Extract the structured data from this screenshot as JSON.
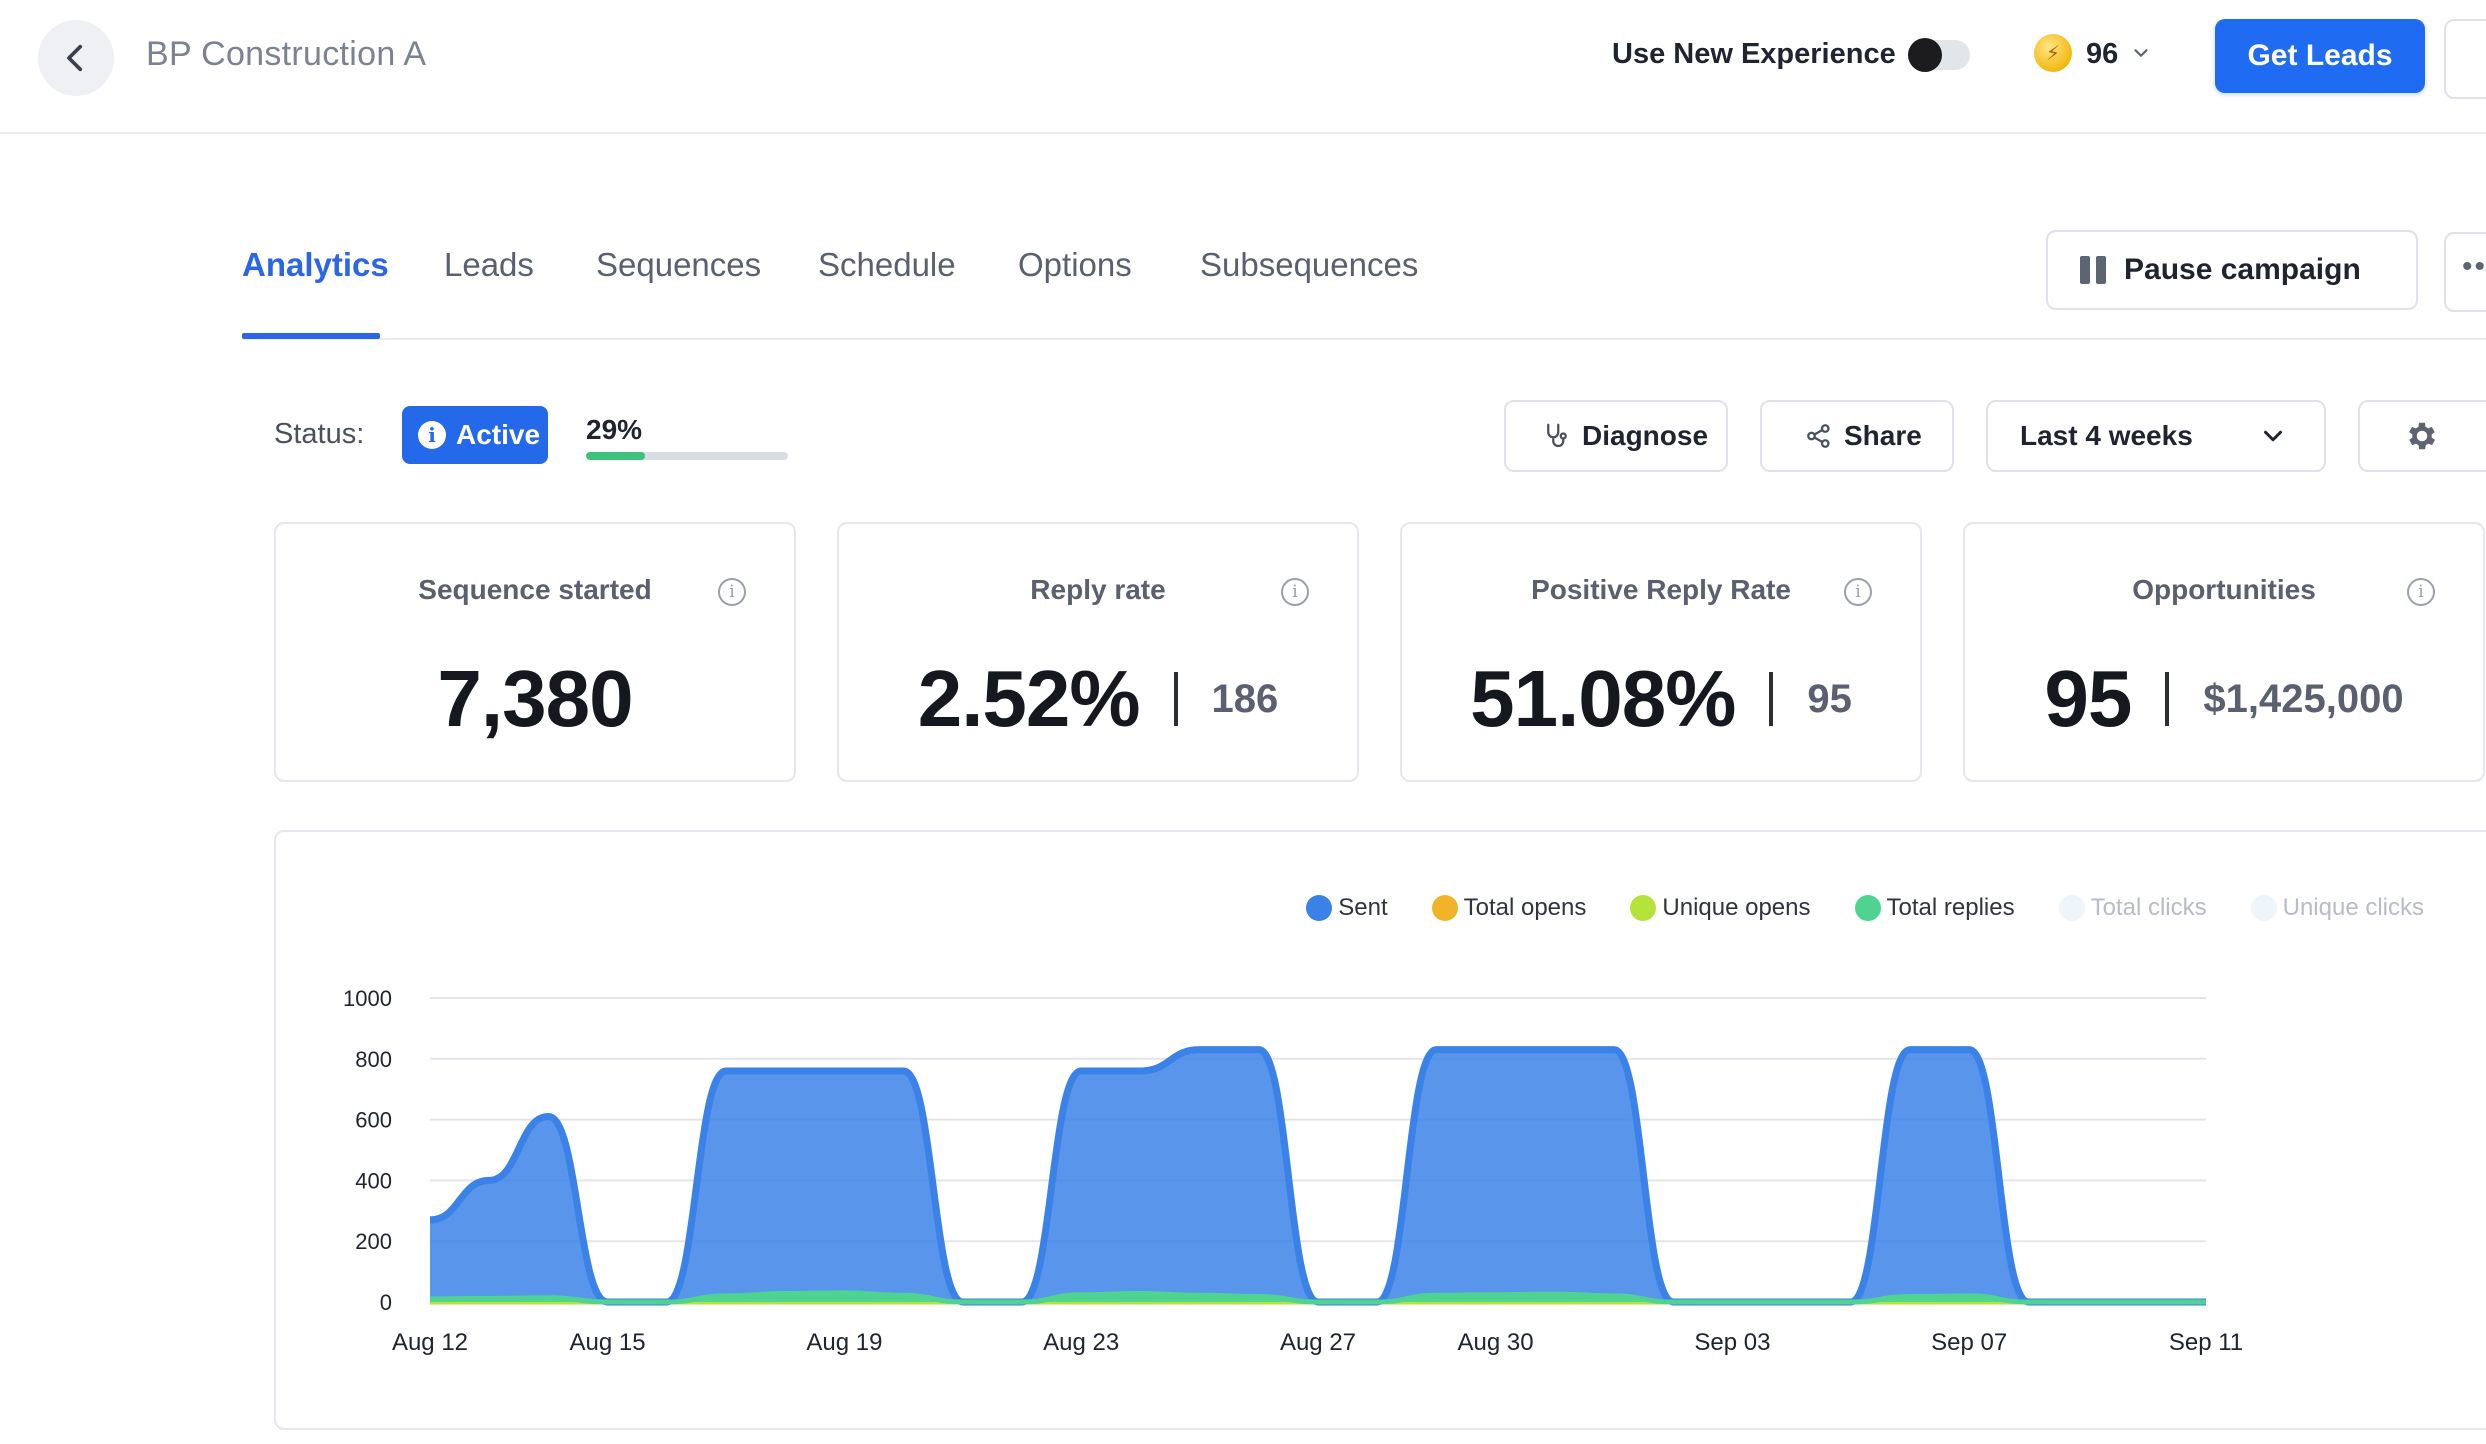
{
  "header": {
    "title": "BP Construction A",
    "new_experience_label": "Use New Experience",
    "new_experience_enabled": false,
    "credits": "96",
    "get_leads_label": "Get Leads"
  },
  "tabs": [
    {
      "label": "Analytics",
      "active": true
    },
    {
      "label": "Leads",
      "active": false
    },
    {
      "label": "Sequences",
      "active": false
    },
    {
      "label": "Schedule",
      "active": false
    },
    {
      "label": "Options",
      "active": false
    },
    {
      "label": "Subsequences",
      "active": false
    }
  ],
  "actions": {
    "pause_label": "Pause campaign",
    "more_label": "••"
  },
  "status": {
    "label": "Status:",
    "badge": "Active",
    "progress_text": "29%",
    "progress": 0.29
  },
  "controls": {
    "diagnose": "Diagnose",
    "share": "Share",
    "range": "Last 4 weeks"
  },
  "cards": [
    {
      "title": "Sequence started",
      "value": "7,380",
      "sub": ""
    },
    {
      "title": "Reply rate",
      "value": "2.52%",
      "sub": "186"
    },
    {
      "title": "Positive Reply Rate",
      "value": "51.08%",
      "sub": "95"
    },
    {
      "title": "Opportunities",
      "value": "95",
      "sub": "$1,425,000"
    }
  ],
  "colors": {
    "accent": "#1f6bf2",
    "sent": "#3b82e8",
    "total_opens": "#f0b429",
    "unique_opens": "#b6e33a",
    "total_replies": "#4ed490",
    "total_clicks": "#eef6fb",
    "unique_clicks": "#eef6fb"
  },
  "chart_data": {
    "type": "area",
    "legend": [
      {
        "name": "Sent",
        "color": "#3b82e8",
        "dim": false
      },
      {
        "name": "Total opens",
        "color": "#f0b429",
        "dim": false
      },
      {
        "name": "Unique opens",
        "color": "#b6e33a",
        "dim": false
      },
      {
        "name": "Total replies",
        "color": "#4ed490",
        "dim": false
      },
      {
        "name": "Total clicks",
        "color": "#eef6fb",
        "dim": true
      },
      {
        "name": "Unique clicks",
        "color": "#eef6fb",
        "dim": true
      }
    ],
    "x_tick_labels": [
      "Aug 12",
      "Aug 15",
      "Aug 19",
      "Aug 23",
      "Aug 27",
      "Aug 30",
      "Sep 03",
      "Sep 07",
      "Sep 11"
    ],
    "y_ticks": [
      0,
      200,
      400,
      600,
      800,
      1000
    ],
    "ylim": [
      0,
      1000
    ],
    "dates": [
      "Aug 12",
      "Aug 13",
      "Aug 14",
      "Aug 15",
      "Aug 16",
      "Aug 17",
      "Aug 18",
      "Aug 19",
      "Aug 20",
      "Aug 21",
      "Aug 22",
      "Aug 23",
      "Aug 24",
      "Aug 25",
      "Aug 26",
      "Aug 27",
      "Aug 28",
      "Aug 29",
      "Aug 30",
      "Aug 31",
      "Sep 01",
      "Sep 02",
      "Sep 03",
      "Sep 04",
      "Sep 05",
      "Sep 06",
      "Sep 07",
      "Sep 08",
      "Sep 09",
      "Sep 10",
      "Sep 11"
    ],
    "series": [
      {
        "name": "Sent",
        "values": [
          270,
          400,
          610,
          0,
          0,
          760,
          760,
          760,
          760,
          0,
          0,
          760,
          760,
          830,
          830,
          0,
          0,
          830,
          830,
          830,
          830,
          0,
          0,
          0,
          0,
          830,
          830,
          0,
          0,
          0,
          0
        ]
      },
      {
        "name": "Total opens",
        "values": [
          0,
          0,
          0,
          0,
          0,
          0,
          0,
          0,
          0,
          0,
          0,
          0,
          0,
          0,
          0,
          0,
          0,
          0,
          0,
          0,
          0,
          0,
          0,
          0,
          0,
          0,
          0,
          0,
          0,
          0,
          0
        ]
      },
      {
        "name": "Unique opens",
        "values": [
          0,
          0,
          0,
          0,
          0,
          0,
          0,
          0,
          0,
          0,
          0,
          0,
          0,
          0,
          0,
          0,
          0,
          0,
          0,
          0,
          0,
          0,
          0,
          0,
          0,
          0,
          0,
          0,
          0,
          0,
          0
        ]
      },
      {
        "name": "Total replies",
        "values": [
          10,
          12,
          14,
          0,
          0,
          20,
          28,
          30,
          22,
          0,
          0,
          24,
          28,
          22,
          18,
          0,
          0,
          22,
          24,
          26,
          20,
          0,
          0,
          0,
          0,
          18,
          20,
          0,
          0,
          0,
          0
        ]
      }
    ],
    "grid": true,
    "legend_position": "top-right"
  }
}
